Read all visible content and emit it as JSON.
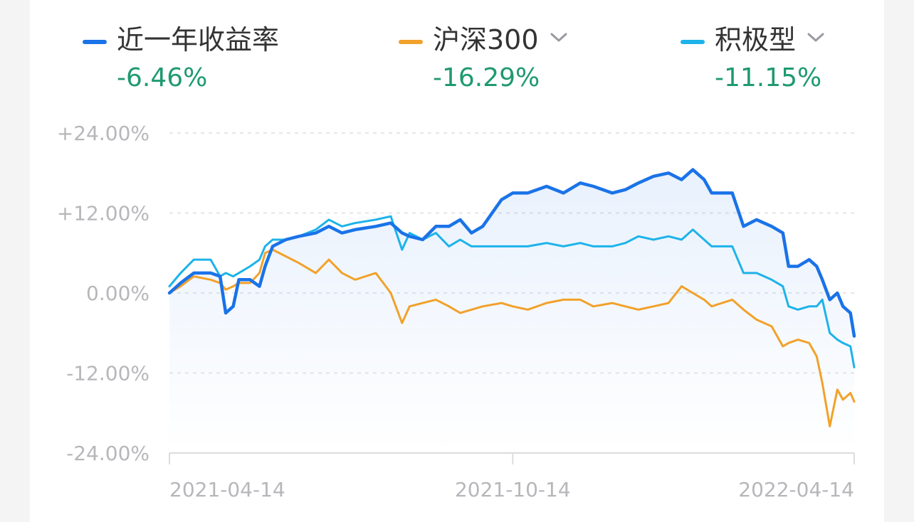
{
  "legend": [
    {
      "name": "近一年收益率",
      "value": "-6.46%",
      "color": "#1a73e8",
      "has_dropdown": false
    },
    {
      "name": "沪深300",
      "value": "-16.29%",
      "color": "#f2a12a",
      "has_dropdown": true
    },
    {
      "name": "积极型",
      "value": "-11.15%",
      "color": "#1db3ea",
      "has_dropdown": true
    }
  ],
  "chart_data": {
    "type": "line",
    "yticks": [
      "+24.00%",
      "+12.00%",
      "0.00%",
      "-12.00%",
      "-24.00%"
    ],
    "xticks": [
      "2021-04-14",
      "2021-10-14",
      "2022-04-14"
    ],
    "ylim": [
      -24,
      24
    ],
    "xlim": [
      "2021-04-14",
      "2022-04-14"
    ],
    "grid": true,
    "series": [
      {
        "name": "近一年收益率",
        "color": "#1a73e8",
        "points": [
          [
            "2021-04-14",
            0
          ],
          [
            "2021-04-20",
            1.5
          ],
          [
            "2021-04-27",
            3
          ],
          [
            "2021-05-06",
            3
          ],
          [
            "2021-05-11",
            2.5
          ],
          [
            "2021-05-14",
            -3
          ],
          [
            "2021-05-18",
            -2
          ],
          [
            "2021-05-21",
            2
          ],
          [
            "2021-05-27",
            2
          ],
          [
            "2021-06-01",
            1
          ],
          [
            "2021-06-04",
            4
          ],
          [
            "2021-06-08",
            7
          ],
          [
            "2021-06-15",
            8
          ],
          [
            "2021-06-22",
            8.5
          ],
          [
            "2021-07-01",
            9
          ],
          [
            "2021-07-08",
            10
          ],
          [
            "2021-07-15",
            9
          ],
          [
            "2021-07-22",
            9.5
          ],
          [
            "2021-08-02",
            10
          ],
          [
            "2021-08-10",
            10.5
          ],
          [
            "2021-08-16",
            9
          ],
          [
            "2021-08-20",
            8.5
          ],
          [
            "2021-08-27",
            8
          ],
          [
            "2021-09-03",
            10
          ],
          [
            "2021-09-10",
            10
          ],
          [
            "2021-09-16",
            11
          ],
          [
            "2021-09-22",
            9
          ],
          [
            "2021-09-28",
            10
          ],
          [
            "2021-10-08",
            14
          ],
          [
            "2021-10-14",
            15
          ],
          [
            "2021-10-22",
            15
          ],
          [
            "2021-11-01",
            16
          ],
          [
            "2021-11-10",
            15
          ],
          [
            "2021-11-19",
            16.5
          ],
          [
            "2021-11-26",
            16
          ],
          [
            "2021-12-06",
            15
          ],
          [
            "2021-12-13",
            15.5
          ],
          [
            "2021-12-20",
            16.5
          ],
          [
            "2021-12-28",
            17.5
          ],
          [
            "2022-01-05",
            18
          ],
          [
            "2022-01-12",
            17
          ],
          [
            "2022-01-18",
            18.5
          ],
          [
            "2022-01-24",
            17
          ],
          [
            "2022-01-28",
            15
          ],
          [
            "2022-02-08",
            15
          ],
          [
            "2022-02-14",
            10
          ],
          [
            "2022-02-21",
            11
          ],
          [
            "2022-03-01",
            10
          ],
          [
            "2022-03-07",
            9
          ],
          [
            "2022-03-10",
            4
          ],
          [
            "2022-03-15",
            4
          ],
          [
            "2022-03-21",
            5
          ],
          [
            "2022-03-25",
            4
          ],
          [
            "2022-03-28",
            2
          ],
          [
            "2022-04-01",
            -1
          ],
          [
            "2022-04-05",
            0
          ],
          [
            "2022-04-08",
            -2
          ],
          [
            "2022-04-12",
            -3
          ],
          [
            "2022-04-14",
            -6.46
          ]
        ]
      },
      {
        "name": "沪深300",
        "color": "#f2a12a",
        "points": [
          [
            "2021-04-14",
            0
          ],
          [
            "2021-04-20",
            1
          ],
          [
            "2021-04-27",
            2.5
          ],
          [
            "2021-05-06",
            2
          ],
          [
            "2021-05-11",
            1.5
          ],
          [
            "2021-05-14",
            0.5
          ],
          [
            "2021-05-18",
            1
          ],
          [
            "2021-05-21",
            1.5
          ],
          [
            "2021-05-27",
            1.5
          ],
          [
            "2021-06-01",
            3
          ],
          [
            "2021-06-04",
            6
          ],
          [
            "2021-06-08",
            6.5
          ],
          [
            "2021-06-15",
            5.5
          ],
          [
            "2021-06-22",
            4.5
          ],
          [
            "2021-07-01",
            3
          ],
          [
            "2021-07-08",
            5
          ],
          [
            "2021-07-15",
            3
          ],
          [
            "2021-07-22",
            2
          ],
          [
            "2021-08-02",
            3
          ],
          [
            "2021-08-10",
            0
          ],
          [
            "2021-08-16",
            -4.5
          ],
          [
            "2021-08-20",
            -2
          ],
          [
            "2021-08-27",
            -1.5
          ],
          [
            "2021-09-03",
            -1
          ],
          [
            "2021-09-10",
            -2
          ],
          [
            "2021-09-16",
            -3
          ],
          [
            "2021-09-22",
            -2.5
          ],
          [
            "2021-09-28",
            -2
          ],
          [
            "2021-10-08",
            -1.5
          ],
          [
            "2021-10-14",
            -2
          ],
          [
            "2021-10-22",
            -2.5
          ],
          [
            "2021-11-01",
            -1.5
          ],
          [
            "2021-11-10",
            -1
          ],
          [
            "2021-11-19",
            -1
          ],
          [
            "2021-11-26",
            -2
          ],
          [
            "2021-12-06",
            -1.5
          ],
          [
            "2021-12-13",
            -2
          ],
          [
            "2021-12-20",
            -2.5
          ],
          [
            "2021-12-28",
            -2
          ],
          [
            "2022-01-05",
            -1.5
          ],
          [
            "2022-01-12",
            1
          ],
          [
            "2022-01-18",
            0
          ],
          [
            "2022-01-24",
            -1
          ],
          [
            "2022-01-28",
            -2
          ],
          [
            "2022-02-08",
            -1
          ],
          [
            "2022-02-14",
            -2.5
          ],
          [
            "2022-02-21",
            -4
          ],
          [
            "2022-03-01",
            -5
          ],
          [
            "2022-03-07",
            -8
          ],
          [
            "2022-03-10",
            -7.5
          ],
          [
            "2022-03-15",
            -7
          ],
          [
            "2022-03-21",
            -7.5
          ],
          [
            "2022-03-25",
            -9.5
          ],
          [
            "2022-03-28",
            -13.5
          ],
          [
            "2022-04-01",
            -20
          ],
          [
            "2022-04-05",
            -14.5
          ],
          [
            "2022-04-08",
            -16
          ],
          [
            "2022-04-12",
            -15
          ],
          [
            "2022-04-14",
            -16.29
          ]
        ]
      },
      {
        "name": "积极型",
        "color": "#1db3ea",
        "points": [
          [
            "2021-04-14",
            1
          ],
          [
            "2021-04-20",
            3
          ],
          [
            "2021-04-27",
            5
          ],
          [
            "2021-05-06",
            5
          ],
          [
            "2021-05-11",
            2.5
          ],
          [
            "2021-05-14",
            3
          ],
          [
            "2021-05-18",
            2.5
          ],
          [
            "2021-05-21",
            3
          ],
          [
            "2021-05-27",
            4
          ],
          [
            "2021-06-01",
            5
          ],
          [
            "2021-06-04",
            7
          ],
          [
            "2021-06-08",
            8
          ],
          [
            "2021-06-15",
            8
          ],
          [
            "2021-06-22",
            8.5
          ],
          [
            "2021-07-01",
            9.5
          ],
          [
            "2021-07-08",
            11
          ],
          [
            "2021-07-15",
            10
          ],
          [
            "2021-07-22",
            10.5
          ],
          [
            "2021-08-02",
            11
          ],
          [
            "2021-08-10",
            11.5
          ],
          [
            "2021-08-16",
            6.5
          ],
          [
            "2021-08-20",
            9
          ],
          [
            "2021-08-27",
            8
          ],
          [
            "2021-09-03",
            9
          ],
          [
            "2021-09-10",
            7
          ],
          [
            "2021-09-16",
            8
          ],
          [
            "2021-09-22",
            7
          ],
          [
            "2021-09-28",
            7
          ],
          [
            "2021-10-08",
            7
          ],
          [
            "2021-10-14",
            7
          ],
          [
            "2021-10-22",
            7
          ],
          [
            "2021-11-01",
            7.5
          ],
          [
            "2021-11-10",
            7
          ],
          [
            "2021-11-19",
            7.5
          ],
          [
            "2021-11-26",
            7
          ],
          [
            "2021-12-06",
            7
          ],
          [
            "2021-12-13",
            7.5
          ],
          [
            "2021-12-20",
            8.5
          ],
          [
            "2021-12-28",
            8
          ],
          [
            "2022-01-05",
            8.5
          ],
          [
            "2022-01-12",
            8
          ],
          [
            "2022-01-18",
            9.5
          ],
          [
            "2022-01-24",
            8
          ],
          [
            "2022-01-28",
            7
          ],
          [
            "2022-02-08",
            7
          ],
          [
            "2022-02-14",
            3
          ],
          [
            "2022-02-21",
            3
          ],
          [
            "2022-03-01",
            2
          ],
          [
            "2022-03-07",
            1
          ],
          [
            "2022-03-10",
            -2
          ],
          [
            "2022-03-15",
            -2.5
          ],
          [
            "2022-03-21",
            -2
          ],
          [
            "2022-03-25",
            -2
          ],
          [
            "2022-03-28",
            -1
          ],
          [
            "2022-04-01",
            -6
          ],
          [
            "2022-04-05",
            -7
          ],
          [
            "2022-04-08",
            -7.5
          ],
          [
            "2022-04-12",
            -8
          ],
          [
            "2022-04-14",
            -11.15
          ]
        ]
      }
    ]
  }
}
